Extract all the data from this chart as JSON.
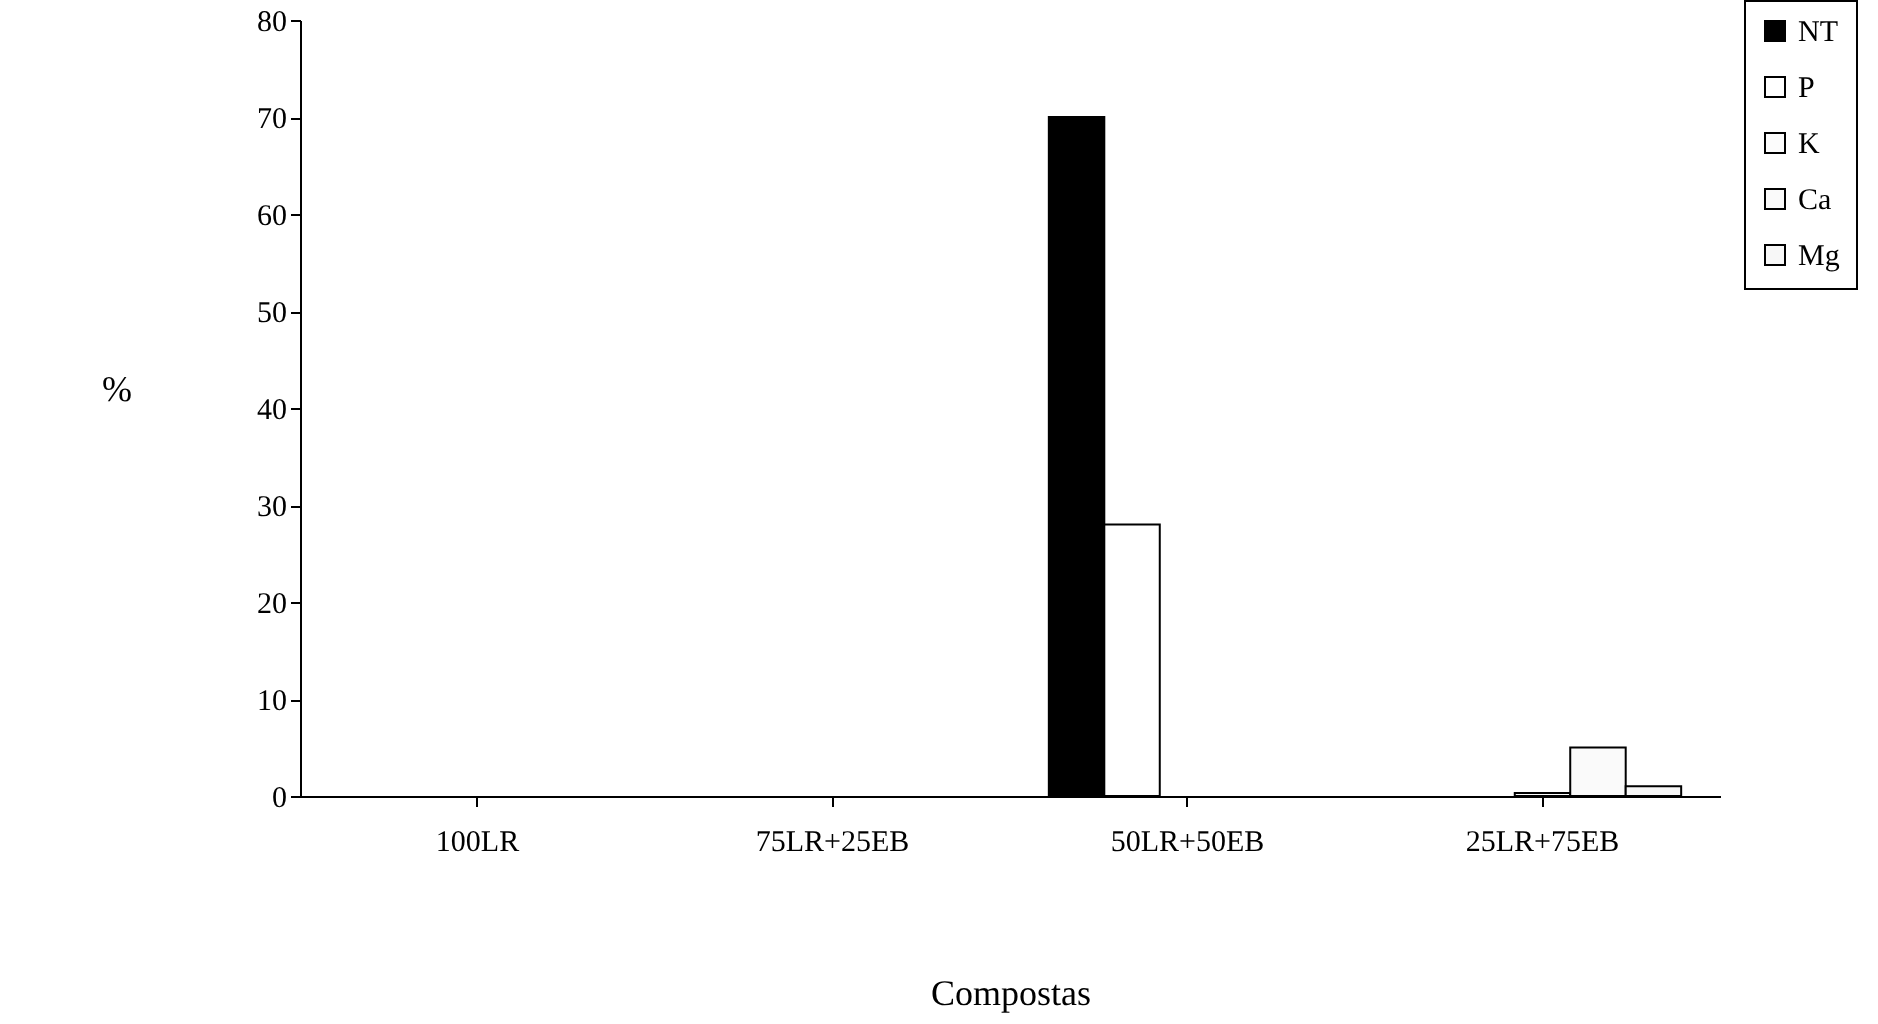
{
  "chart_data": {
    "type": "bar",
    "xlabel": "Compostas",
    "ylabel": "%",
    "categories": [
      "100LR",
      "75LR+25EB",
      "50LR+50EB",
      "25LR+75EB"
    ],
    "series": [
      {
        "name": "NT",
        "color": "#000000",
        "values": [
          null,
          null,
          70,
          null
        ]
      },
      {
        "name": "P",
        "color": "#ffffff",
        "values": [
          null,
          null,
          28,
          null
        ]
      },
      {
        "name": "K",
        "color": "#fcfcfc",
        "values": [
          null,
          null,
          null,
          0.3
        ]
      },
      {
        "name": "Ca",
        "color": "#fafafa",
        "values": [
          null,
          null,
          null,
          5
        ]
      },
      {
        "name": "Mg",
        "color": "#f7f7f7",
        "values": [
          null,
          null,
          null,
          1
        ]
      }
    ],
    "ylim": [
      0,
      80
    ],
    "yticks": [
      0,
      10,
      20,
      30,
      40,
      50,
      60,
      70,
      80
    ],
    "grid": false,
    "legend": "top right"
  }
}
